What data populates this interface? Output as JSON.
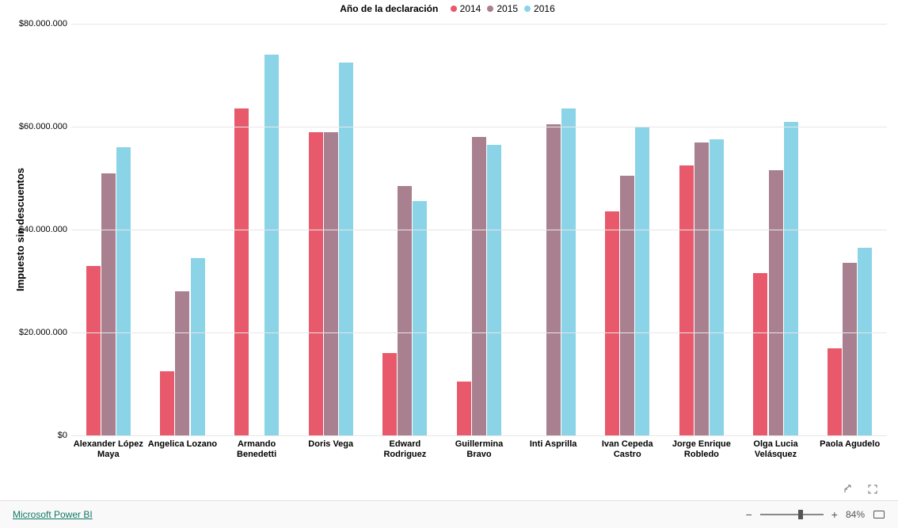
{
  "chart": {
    "type": "bar",
    "legend_title": "Año de la declaración",
    "series": [
      {
        "year": "2014",
        "color": "#e8596c"
      },
      {
        "year": "2015",
        "color": "#a98090"
      },
      {
        "year": "2016",
        "color": "#8bd4e8"
      }
    ],
    "y_axis": {
      "title": "Impuesto sin descuentos",
      "min": 0,
      "max": 80000000,
      "tick_step": 20000000,
      "ticks": [
        "$0",
        "$20.000.000",
        "$40.000.000",
        "$60.000.000",
        "$80.000.000"
      ],
      "label_fontsize": 11,
      "title_fontsize": 13
    },
    "categories": [
      {
        "label": "Alexander López Maya",
        "values": [
          33000000,
          51000000,
          56000000
        ]
      },
      {
        "label": "Angelica Lozano",
        "values": [
          12500000,
          28000000,
          34500000
        ]
      },
      {
        "label": "Armando Benedetti",
        "values": [
          63500000,
          0,
          74000000
        ]
      },
      {
        "label": "Doris Vega",
        "values": [
          59000000,
          59000000,
          72500000
        ]
      },
      {
        "label": "Edward Rodriguez",
        "values": [
          16000000,
          48500000,
          45500000
        ]
      },
      {
        "label": "Guillermina Bravo",
        "values": [
          10500000,
          58000000,
          56500000
        ]
      },
      {
        "label": "Inti Asprilla",
        "values": [
          0,
          60500000,
          63500000
        ]
      },
      {
        "label": "Ivan Cepeda Castro",
        "values": [
          43500000,
          50500000,
          60000000
        ]
      },
      {
        "label": "Jorge Enrique Robledo",
        "values": [
          52500000,
          57000000,
          57500000
        ]
      },
      {
        "label": "Olga Lucia Velásquez",
        "values": [
          31500000,
          51500000,
          61000000
        ]
      },
      {
        "label": "Paola Agudelo",
        "values": [
          17000000,
          33500000,
          36500000
        ]
      }
    ],
    "plot_background": "#ffffff",
    "grid_color": "#e6e6e6",
    "bar_group_padding": 0.2,
    "bar_inner_padding": 0.02,
    "x_label_fontsize": 11,
    "x_label_fontweight": "600"
  },
  "footer": {
    "brand": "Microsoft Power BI",
    "zoom_minus": "−",
    "zoom_plus": "+",
    "zoom_pct": "84%"
  }
}
